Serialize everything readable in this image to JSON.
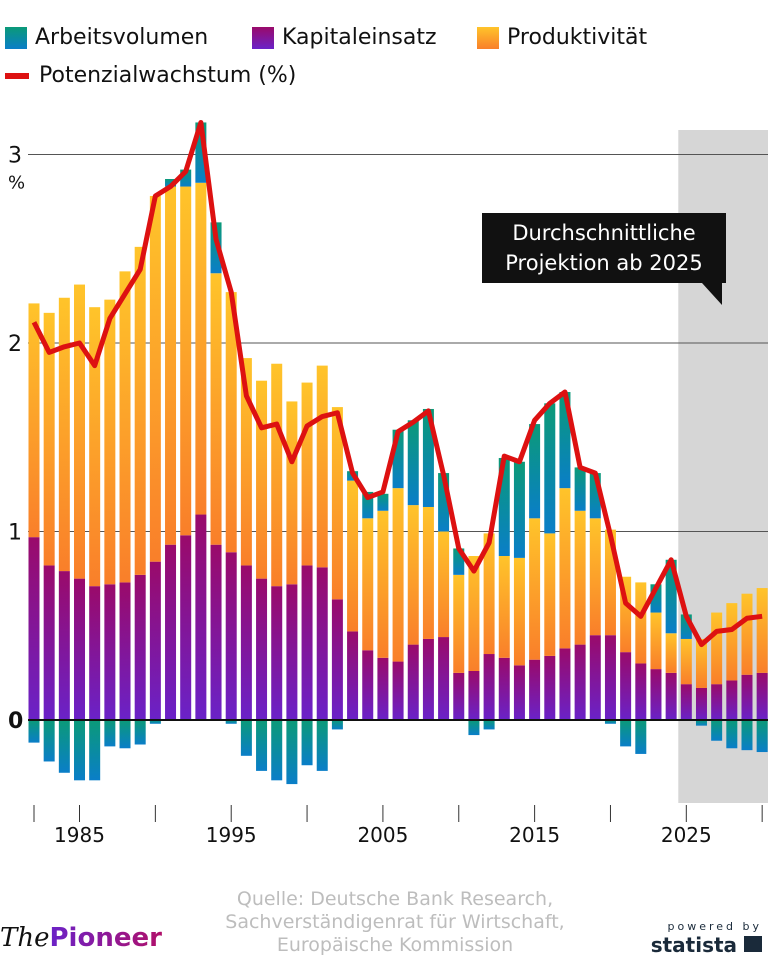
{
  "legend": {
    "arbeit": "Arbeitsvolumen",
    "kapital": "Kapitaleinsatz",
    "produktivitaet": "Produktivität",
    "line": "Potenzialwachstum (%)"
  },
  "annotation": {
    "line1": "Durchschnittliche",
    "line2": "Projektion ab 2025"
  },
  "source": {
    "line1": "Quelle: Deutsche Bank Research,",
    "line2": "Sachverständigenrat für Wirtschaft,",
    "line3": "Europäische Kommission"
  },
  "logos": {
    "left": "ThePioneer",
    "left_a": "The",
    "left_b": "Pioneer",
    "right_top": "powered by",
    "right_bottom": "statista"
  },
  "chart_data": {
    "type": "bar",
    "stacked": true,
    "x": [
      1982,
      1983,
      1984,
      1985,
      1986,
      1987,
      1988,
      1989,
      1990,
      1991,
      1992,
      1993,
      1994,
      1995,
      1996,
      1997,
      1998,
      1999,
      2000,
      2001,
      2002,
      2003,
      2004,
      2005,
      2006,
      2007,
      2008,
      2009,
      2010,
      2011,
      2012,
      2013,
      2014,
      2015,
      2016,
      2017,
      2018,
      2019,
      2020,
      2021,
      2022,
      2023,
      2024,
      2025,
      2026,
      2027,
      2028,
      2029,
      2030
    ],
    "series": [
      {
        "name": "Kapitaleinsatz",
        "color": "#8a1480",
        "values": [
          0.97,
          0.82,
          0.79,
          0.75,
          0.71,
          0.72,
          0.73,
          0.77,
          0.84,
          0.93,
          0.98,
          1.09,
          0.93,
          0.89,
          0.82,
          0.75,
          0.71,
          0.72,
          0.82,
          0.81,
          0.64,
          0.47,
          0.37,
          0.33,
          0.31,
          0.4,
          0.43,
          0.44,
          0.25,
          0.26,
          0.35,
          0.33,
          0.29,
          0.32,
          0.34,
          0.38,
          0.4,
          0.45,
          0.45,
          0.36,
          0.3,
          0.27,
          0.25,
          0.19,
          0.17,
          0.19,
          0.21,
          0.24,
          0.25
        ]
      },
      {
        "name": "Produktivität",
        "color": "#fca02a",
        "values": [
          1.24,
          1.34,
          1.45,
          1.56,
          1.48,
          1.51,
          1.65,
          1.74,
          1.94,
          1.9,
          1.85,
          1.76,
          1.44,
          1.38,
          1.1,
          1.05,
          1.18,
          0.97,
          0.97,
          1.07,
          1.02,
          0.8,
          0.7,
          0.78,
          0.92,
          0.74,
          0.7,
          0.56,
          0.52,
          0.61,
          0.64,
          0.54,
          0.57,
          0.75,
          0.65,
          0.85,
          0.71,
          0.62,
          0.56,
          0.4,
          0.43,
          0.3,
          0.21,
          0.24,
          0.26,
          0.38,
          0.41,
          0.43,
          0.45
        ]
      },
      {
        "name": "Arbeitsvolumen",
        "color": "#0a8aa8",
        "values": [
          -0.12,
          -0.22,
          -0.28,
          -0.32,
          -0.32,
          -0.14,
          -0.15,
          -0.13,
          -0.02,
          0.04,
          0.09,
          0.32,
          0.27,
          -0.02,
          -0.19,
          -0.27,
          -0.32,
          -0.34,
          -0.24,
          -0.27,
          -0.05,
          0.05,
          0.14,
          0.09,
          0.31,
          0.45,
          0.52,
          0.31,
          0.14,
          -0.08,
          -0.05,
          0.52,
          0.51,
          0.5,
          0.69,
          0.51,
          0.23,
          0.24,
          -0.02,
          -0.14,
          -0.18,
          0.15,
          0.39,
          0.13,
          -0.03,
          -0.11,
          -0.15,
          -0.16,
          -0.17
        ]
      }
    ],
    "line": {
      "name": "Potenzialwachstum (%)",
      "color": "#dd1111",
      "values": [
        2.11,
        1.95,
        1.98,
        2.0,
        1.88,
        2.13,
        2.26,
        2.39,
        2.78,
        2.83,
        2.91,
        3.17,
        2.55,
        2.27,
        1.72,
        1.55,
        1.57,
        1.37,
        1.56,
        1.61,
        1.63,
        1.31,
        1.18,
        1.21,
        1.53,
        1.58,
        1.64,
        1.3,
        0.91,
        0.79,
        0.94,
        1.4,
        1.37,
        1.59,
        1.68,
        1.74,
        1.34,
        1.31,
        0.98,
        0.62,
        0.55,
        0.7,
        0.85,
        0.55,
        0.4,
        0.47,
        0.48,
        0.54,
        0.55
      ]
    },
    "ylabel": "%",
    "ylim": [
      -0.4,
      3.3
    ],
    "yticks": [
      "0",
      "1",
      "2",
      "3"
    ],
    "xticks": [
      "1985",
      "1995",
      "2005",
      "2015",
      "2025"
    ],
    "grid": true,
    "projection_from": 2025,
    "projection_shade": "#d6d6d6",
    "legend_position": "top-left"
  }
}
